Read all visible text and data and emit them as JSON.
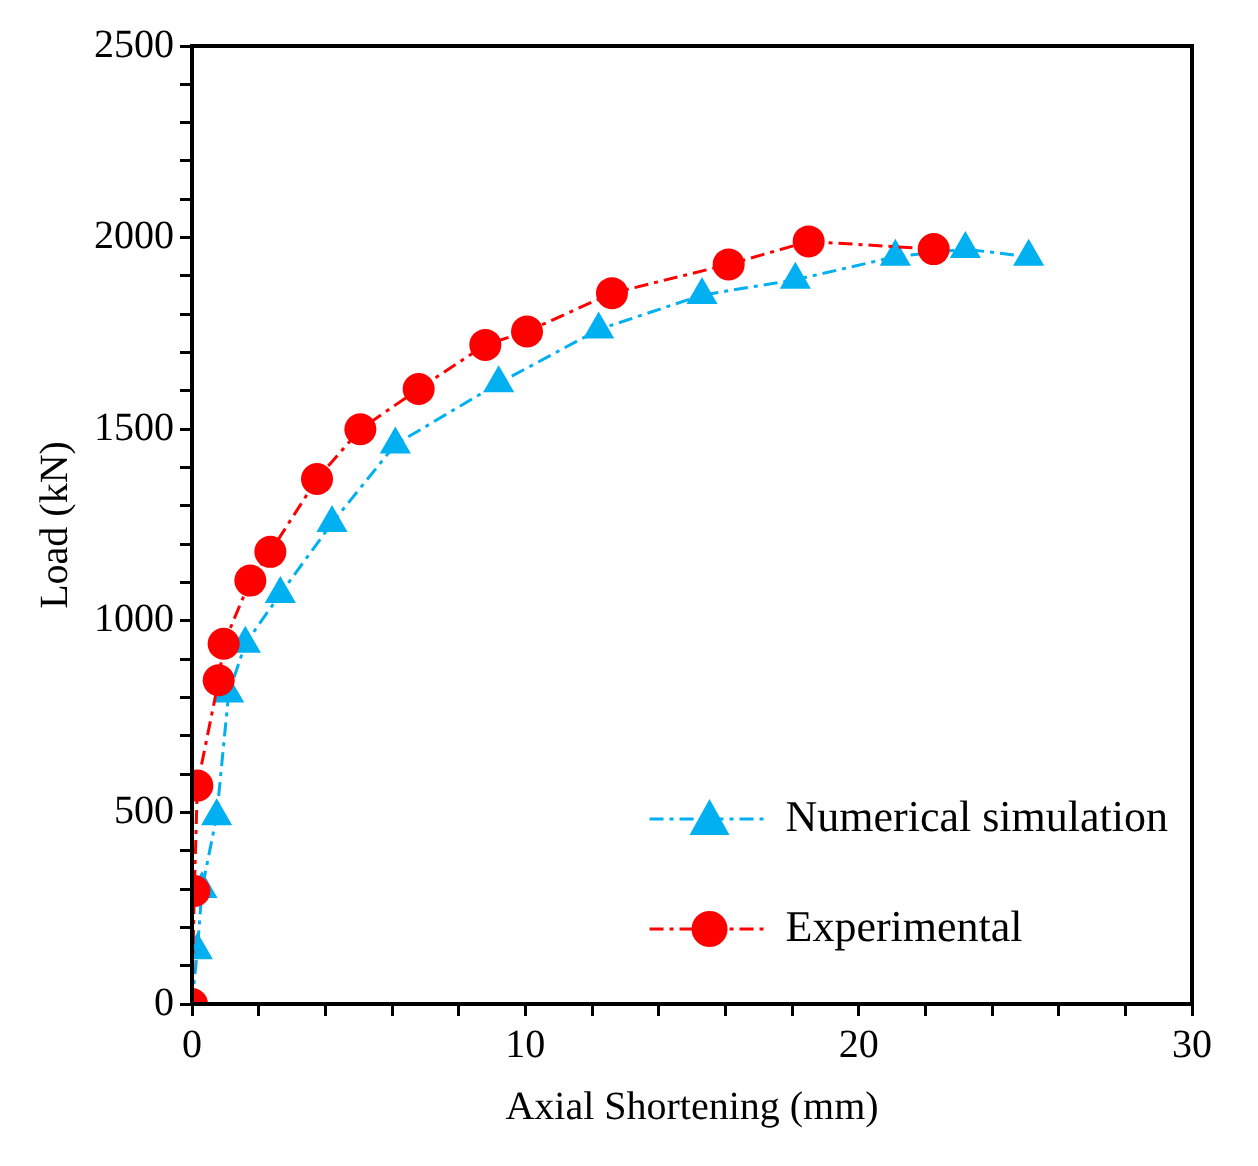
{
  "chart_data": {
    "type": "line",
    "xlabel": "Axial Shortening (mm)",
    "ylabel": "Load (kN)",
    "xlim": [
      0,
      30
    ],
    "xticks": [
      0,
      {
        "value": 2,
        "label": null
      },
      {
        "value": 4,
        "label": null
      },
      {
        "value": 6,
        "label": null
      },
      {
        "value": 8,
        "label": null
      },
      10,
      {
        "value": 12,
        "label": null
      },
      {
        "value": 14,
        "label": null
      },
      {
        "value": 16,
        "label": null
      },
      {
        "value": 18,
        "label": null
      },
      20,
      {
        "value": 22,
        "label": null
      },
      {
        "value": 24,
        "label": null
      },
      {
        "value": 26,
        "label": null
      },
      {
        "value": 28,
        "label": null
      },
      30
    ],
    "ylim": [
      0,
      2500
    ],
    "yticks": [
      0,
      {
        "value": 100,
        "label": null
      },
      {
        "value": 200,
        "label": null
      },
      {
        "value": 300,
        "label": null
      },
      {
        "value": 400,
        "label": null
      },
      500,
      {
        "value": 600,
        "label": null
      },
      {
        "value": 700,
        "label": null
      },
      {
        "value": 800,
        "label": null
      },
      {
        "value": 900,
        "label": null
      },
      1000,
      {
        "value": 1100,
        "label": null
      },
      {
        "value": 1200,
        "label": null
      },
      {
        "value": 1300,
        "label": null
      },
      {
        "value": 1400,
        "label": null
      },
      1500,
      {
        "value": 1600,
        "label": null
      },
      {
        "value": 1700,
        "label": null
      },
      {
        "value": 1800,
        "label": null
      },
      {
        "value": 1900,
        "label": null
      },
      2000,
      {
        "value": 2100,
        "label": null
      },
      {
        "value": 2200,
        "label": null
      },
      {
        "value": 2300,
        "label": null
      },
      {
        "value": 2400,
        "label": null
      },
      2500
    ],
    "grid": false,
    "legend": "bottom right",
    "line_style": "dashed",
    "series": [
      {
        "name": "Numerical simulation",
        "color": "#00b0f0",
        "marker": "triangle",
        "x": [
          0,
          0.16,
          0.3,
          0.74,
          1.1,
          1.6,
          2.65,
          4.2,
          6.1,
          9.2,
          12.2,
          15.3,
          18.1,
          21.1,
          23.2,
          25.1
        ],
        "values": [
          0,
          140,
          300,
          490,
          810,
          940,
          1070,
          1255,
          1460,
          1620,
          1760,
          1850,
          1890,
          1950,
          1970,
          1950
        ]
      },
      {
        "name": "Experimental",
        "color": "#ff0000",
        "marker": "circle",
        "x": [
          0,
          0.07,
          0.16,
          0.8,
          0.95,
          1.75,
          2.35,
          3.75,
          5.05,
          6.8,
          8.8,
          10.05,
          12.6,
          16.1,
          18.5,
          22.25
        ],
        "values": [
          0,
          295,
          570,
          845,
          940,
          1105,
          1180,
          1370,
          1500,
          1605,
          1720,
          1755,
          1855,
          1930,
          1990,
          1970
        ]
      }
    ]
  }
}
